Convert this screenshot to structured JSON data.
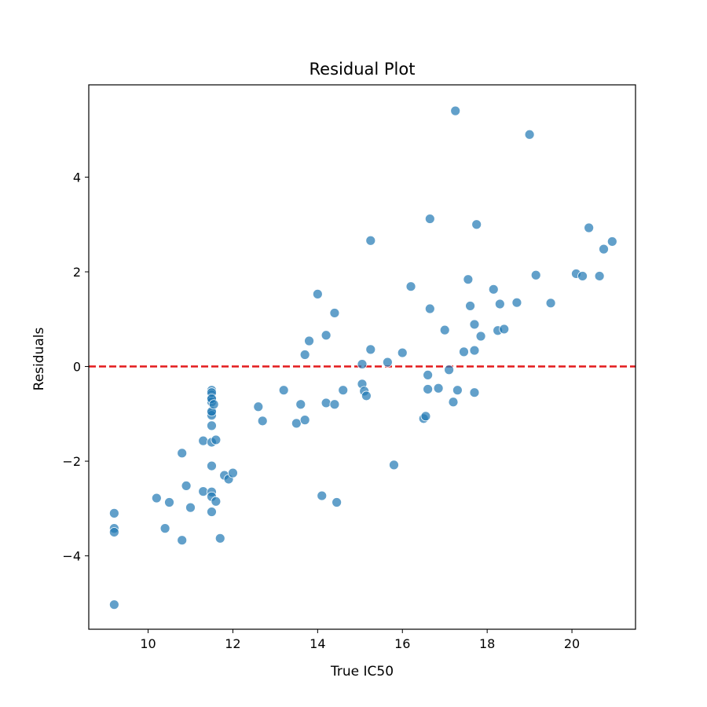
{
  "chart_data": {
    "type": "scatter",
    "title": "Residual Plot",
    "xlabel": "True IC50",
    "ylabel": "Residuals",
    "xlim": [
      8.6,
      21.5
    ],
    "ylim": [
      -5.55,
      5.95
    ],
    "xticks": [
      10,
      12,
      14,
      16,
      18,
      20
    ],
    "yticks": [
      -4,
      -2,
      0,
      2,
      4
    ],
    "xtick_labels": [
      "10",
      "12",
      "14",
      "16",
      "18",
      "20"
    ],
    "ytick_labels": [
      "−4",
      "−2",
      "0",
      "2",
      "4"
    ],
    "grid": false,
    "point_color": "#1f77b4",
    "point_opacity": 0.7,
    "reference_line": {
      "y": 0,
      "color": "#e31a1c",
      "style": "dashed"
    },
    "series": [
      {
        "x": [
          9.2,
          9.2,
          9.2,
          9.2,
          10.2,
          10.4,
          10.5,
          10.8,
          10.8,
          10.9,
          11.0,
          11.3,
          11.3,
          11.5,
          11.5,
          11.5,
          11.5,
          11.5,
          11.5,
          11.5,
          11.5,
          11.5,
          11.5,
          11.5,
          11.5,
          11.5,
          11.5,
          11.5,
          11.5,
          11.55,
          11.6,
          11.6,
          11.7,
          11.8,
          11.9,
          12.0,
          12.6,
          12.7,
          13.2,
          13.5,
          13.6,
          13.7,
          13.7,
          13.8,
          14.0,
          14.1,
          14.2,
          14.2,
          14.4,
          14.4,
          14.45,
          14.6,
          15.05,
          15.05,
          15.1,
          15.15,
          15.25,
          15.25,
          15.65,
          15.8,
          16.0,
          16.2,
          16.5,
          16.55,
          16.6,
          16.6,
          16.65,
          16.65,
          16.85,
          17.0,
          17.1,
          17.2,
          17.25,
          17.3,
          17.45,
          17.55,
          17.6,
          17.7,
          17.7,
          17.7,
          17.75,
          17.85,
          18.15,
          18.25,
          18.3,
          18.4,
          18.7,
          19.0,
          19.15,
          19.5,
          20.1,
          20.25,
          20.4,
          20.65,
          20.75,
          20.95
        ],
        "y": [
          -3.1,
          -3.42,
          -3.5,
          -5.03,
          -2.78,
          -3.42,
          -2.87,
          -1.83,
          -3.67,
          -2.52,
          -2.98,
          -1.57,
          -2.64,
          -0.5,
          -0.6,
          -0.65,
          -0.7,
          -0.75,
          -0.98,
          -1.03,
          -1.25,
          -1.6,
          -2.1,
          -2.65,
          -2.75,
          -3.07,
          -0.55,
          -0.95,
          -0.68,
          -0.8,
          -1.55,
          -2.85,
          -3.63,
          -2.3,
          -2.38,
          -2.25,
          -0.85,
          -1.15,
          -0.5,
          -1.2,
          -0.8,
          -1.13,
          0.25,
          0.54,
          1.53,
          -2.73,
          0.66,
          -0.77,
          1.13,
          -0.8,
          -2.87,
          -0.5,
          0.05,
          -0.37,
          -0.52,
          -0.62,
          0.36,
          2.66,
          0.09,
          -2.08,
          0.29,
          1.69,
          -1.1,
          -1.05,
          -0.48,
          -0.18,
          1.22,
          3.12,
          -0.46,
          0.77,
          -0.07,
          -0.75,
          5.4,
          -0.5,
          0.31,
          1.84,
          1.28,
          0.89,
          0.34,
          -0.55,
          3.0,
          0.64,
          1.63,
          0.76,
          1.32,
          0.79,
          1.35,
          4.9,
          1.93,
          1.34,
          1.96,
          1.91,
          2.93,
          1.91,
          2.48,
          2.64
        ]
      }
    ]
  }
}
